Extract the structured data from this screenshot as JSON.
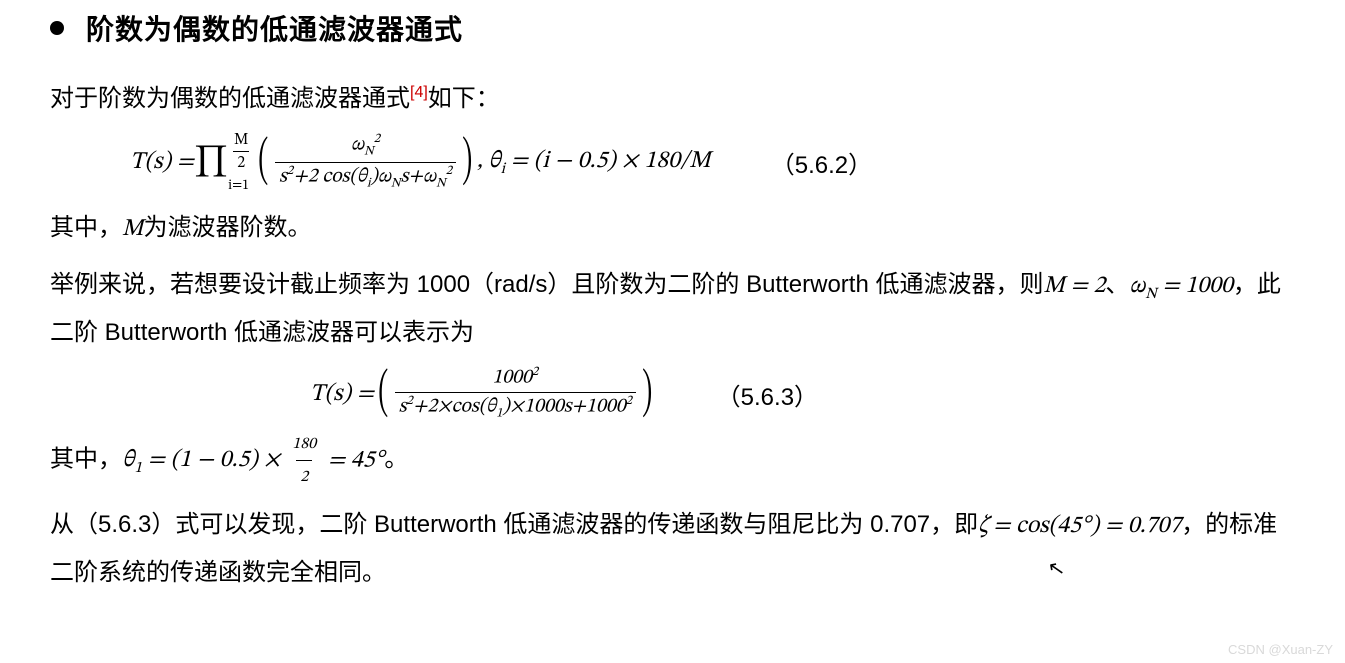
{
  "heading": "阶数为偶数的低通滤波器通式",
  "p1_a": "对于阶数为偶数的低通滤波器通式",
  "p1_cite": "[4]",
  "p1_b": "如下：",
  "eq1": {
    "lhs": "T(s) = ",
    "prod_top_num": "M",
    "prod_top_den": "2",
    "prod_bot": "i=1",
    "frac_num": "ω<sub>N</sub><sup>2</sup>",
    "frac_den": "s<sup>2</sup>+2 cos(θ<sub>i</sub>)ω<sub>N</sub>s+ω<sub>N</sub><sup>2</sup>",
    "theta": ", θ<sub>i</sub> = (i − 0.5) × 180/M",
    "num": "（5.6.2）"
  },
  "p2_a": "其中，",
  "p2_m": "M",
  "p2_b": "为滤波器阶数。",
  "p3_a": "举例来说，若想要设计截止频率为 1000（rad/s）且阶数为二阶的 Butterworth 低通滤波器，则",
  "p3_m1": "M = 2",
  "p3_sep": "、",
  "p3_m2": "ω<sub>N</sub> = 1000",
  "p3_b": "，此二阶 Butterworth 低通滤波器可以表示为",
  "eq2": {
    "lhs": "T(s) = ",
    "frac_num": "1000<sup>2</sup>",
    "frac_den": "s<sup>2</sup>+2×cos(θ<sub>1</sub>)×1000s+1000<sup>2</sup>",
    "num": "（5.6.3）"
  },
  "p4_a": "其中，",
  "p4_m1": "θ<sub>1</sub> = (1 − 0.5) × ",
  "p4_frac_num": "180",
  "p4_frac_den": "2",
  "p4_m2": " = 45°",
  "p4_b": "。",
  "p5_a": "从（5.6.3）式可以发现，二阶 Butterworth 低通滤波器的传递函数与阻尼比为 0.707，即",
  "p5_m": "ζ = cos(45°) = 0.707",
  "p5_b": "，的标准二阶系统的传递函数完全相同。",
  "watermark": "CSDN @Xuan-ZY"
}
